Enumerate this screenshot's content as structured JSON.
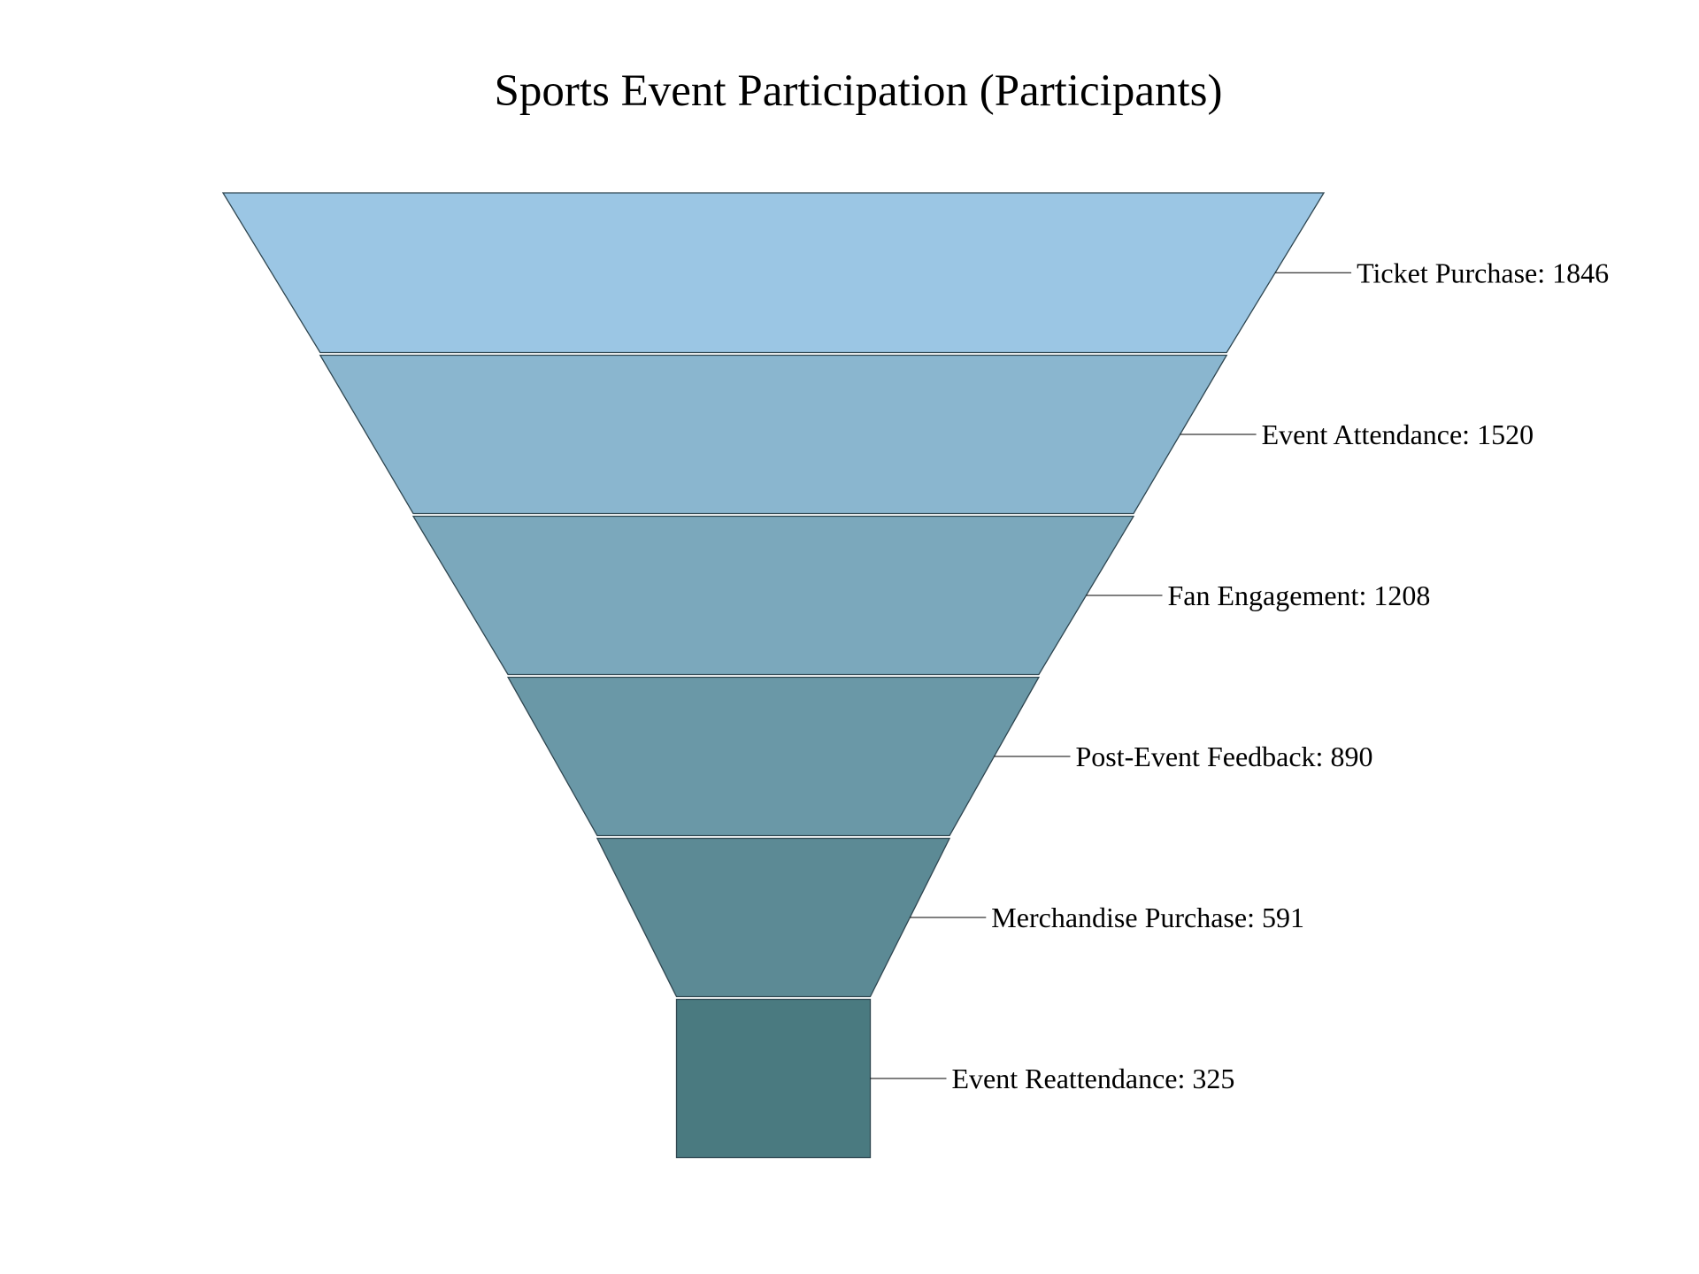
{
  "chart_data": {
    "type": "funnel",
    "title": "Sports Event Participation (Participants)",
    "stages": [
      {
        "label": "Ticket Purchase",
        "value": 1846,
        "color": "#9bc6e4"
      },
      {
        "label": "Event Attendance",
        "value": 1520,
        "color": "#8ab6cf"
      },
      {
        "label": "Fan Engagement",
        "value": 1208,
        "color": "#7ba8bc"
      },
      {
        "label": "Post-Event Feedback",
        "value": 890,
        "color": "#6a98a7"
      },
      {
        "label": "Merchandise Purchase",
        "value": 591,
        "color": "#5c8a95"
      },
      {
        "label": "Event Reattendance",
        "value": 325,
        "color": "#4a7a80"
      }
    ],
    "label_format": "{label}: {value}",
    "outline_color": "#2f4650",
    "leader_line_color": "#000000"
  }
}
